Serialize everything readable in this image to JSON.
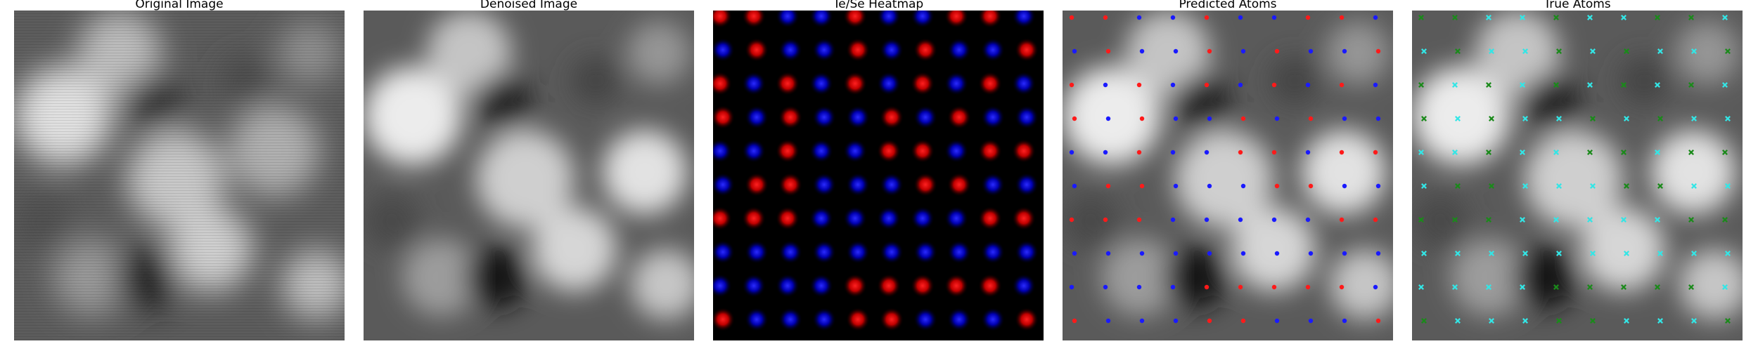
{
  "figure": {
    "panels": [
      {
        "title": "Original Image"
      },
      {
        "title": "Denoised Image"
      },
      {
        "title": "Te/Se Heatmap"
      },
      {
        "title": "Predicted Atoms"
      },
      {
        "title": "True Atoms"
      }
    ]
  },
  "colors": {
    "te_red": "#ff1a1a",
    "se_blue": "#1a1aff",
    "true_cyan": "#33e6e6",
    "true_green": "#1a8a1a"
  }
}
